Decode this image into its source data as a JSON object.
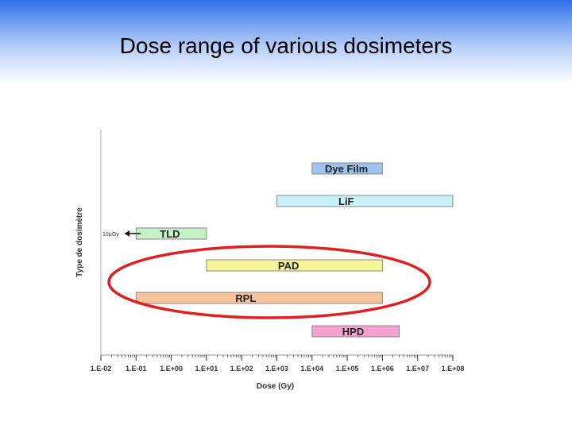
{
  "slide": {
    "title": "Dose range of various dosimeters"
  },
  "chart_data": {
    "type": "bar",
    "orientation": "horizontal-range",
    "xscale": "log",
    "xlabel": "Dose (Gy)",
    "ylabel": "Type de dosimètre",
    "xlim": [
      0.01,
      100000000
    ],
    "x_ticks": [
      "1.E-02",
      "1.E-01",
      "1.E+00",
      "1.E+01",
      "1.E+02",
      "1.E+03",
      "1.E+04",
      "1.E+05",
      "1.E+06",
      "1.E+07",
      "1.E+08"
    ],
    "bars": [
      {
        "name": "Dye Film",
        "low": 10000,
        "high": 1000000,
        "color": "#9ec3ec"
      },
      {
        "name": "LiF",
        "low": 1000,
        "high": 100000000,
        "color": "#c8f2f6"
      },
      {
        "name": "TLD",
        "low": 0.1,
        "high": 10,
        "color": "#c6f0c8"
      },
      {
        "name": "PAD",
        "low": 10,
        "high": 1000000,
        "color": "#f7f59a"
      },
      {
        "name": "RPL",
        "low": 0.1,
        "high": 1000000,
        "color": "#f6c39c"
      },
      {
        "name": "HPD",
        "low": 10000,
        "high": 3000000,
        "color": "#f5a0cf"
      }
    ],
    "annotation": {
      "text": "10µGy",
      "points_to": "TLD"
    },
    "highlight": {
      "shape": "ellipse",
      "color": "#e02020",
      "encloses": [
        "PAD",
        "RPL"
      ]
    }
  }
}
